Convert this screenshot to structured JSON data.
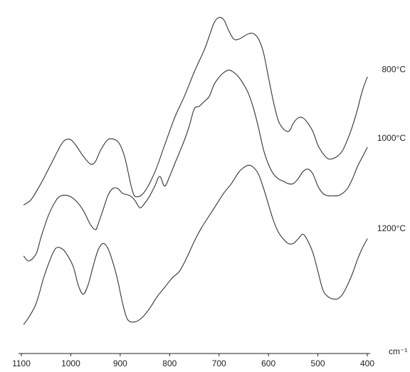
{
  "chart_data": {
    "type": "line",
    "title": "",
    "xlabel": "cm⁻¹",
    "ylabel": "",
    "xlim": [
      1100,
      400
    ],
    "x_reversed": true,
    "x_ticks": [
      "1100",
      "1000",
      "900",
      "800",
      "700",
      "600",
      "500",
      "400"
    ],
    "grid": false,
    "legend": "series labels at right end of each curve",
    "series": [
      {
        "name": "800°C",
        "points": [
          [
            1095,
            0.28
          ],
          [
            1080,
            0.3
          ],
          [
            1060,
            0.36
          ],
          [
            1040,
            0.43
          ],
          [
            1020,
            0.5
          ],
          [
            1010,
            0.52
          ],
          [
            1000,
            0.52
          ],
          [
            990,
            0.5
          ],
          [
            975,
            0.46
          ],
          [
            960,
            0.43
          ],
          [
            950,
            0.44
          ],
          [
            940,
            0.48
          ],
          [
            925,
            0.52
          ],
          [
            910,
            0.52
          ],
          [
            900,
            0.5
          ],
          [
            890,
            0.45
          ],
          [
            875,
            0.33
          ],
          [
            865,
            0.31
          ],
          [
            850,
            0.33
          ],
          [
            830,
            0.4
          ],
          [
            810,
            0.5
          ],
          [
            790,
            0.6
          ],
          [
            770,
            0.68
          ],
          [
            750,
            0.77
          ],
          [
            730,
            0.85
          ],
          [
            720,
            0.9
          ],
          [
            710,
            0.95
          ],
          [
            700,
            0.97
          ],
          [
            690,
            0.96
          ],
          [
            680,
            0.92
          ],
          [
            670,
            0.89
          ],
          [
            660,
            0.89
          ],
          [
            650,
            0.9
          ],
          [
            640,
            0.91
          ],
          [
            630,
            0.91
          ],
          [
            620,
            0.89
          ],
          [
            610,
            0.84
          ],
          [
            600,
            0.75
          ],
          [
            590,
            0.66
          ],
          [
            580,
            0.59
          ],
          [
            570,
            0.56
          ],
          [
            560,
            0.55
          ],
          [
            555,
            0.56
          ],
          [
            550,
            0.58
          ],
          [
            540,
            0.6
          ],
          [
            530,
            0.6
          ],
          [
            520,
            0.58
          ],
          [
            510,
            0.55
          ],
          [
            500,
            0.5
          ],
          [
            490,
            0.47
          ],
          [
            480,
            0.45
          ],
          [
            470,
            0.45
          ],
          [
            460,
            0.46
          ],
          [
            450,
            0.48
          ],
          [
            440,
            0.52
          ],
          [
            430,
            0.57
          ],
          [
            420,
            0.63
          ],
          [
            410,
            0.7
          ],
          [
            400,
            0.75
          ]
        ],
        "color": "#333333"
      },
      {
        "name": "1000°C",
        "points": [
          [
            1095,
            0.17
          ],
          [
            1085,
            0.15
          ],
          [
            1070,
            0.18
          ],
          [
            1060,
            0.25
          ],
          [
            1045,
            0.34
          ],
          [
            1030,
            0.4
          ],
          [
            1020,
            0.42
          ],
          [
            1005,
            0.42
          ],
          [
            990,
            0.4
          ],
          [
            975,
            0.36
          ],
          [
            960,
            0.3
          ],
          [
            950,
            0.28
          ],
          [
            945,
            0.3
          ],
          [
            935,
            0.36
          ],
          [
            925,
            0.42
          ],
          [
            915,
            0.45
          ],
          [
            905,
            0.45
          ],
          [
            895,
            0.43
          ],
          [
            880,
            0.42
          ],
          [
            870,
            0.4
          ],
          [
            860,
            0.37
          ],
          [
            850,
            0.39
          ],
          [
            840,
            0.42
          ],
          [
            830,
            0.46
          ],
          [
            820,
            0.5
          ],
          [
            810,
            0.46
          ],
          [
            800,
            0.5
          ],
          [
            790,
            0.55
          ],
          [
            780,
            0.6
          ],
          [
            770,
            0.65
          ],
          [
            760,
            0.71
          ],
          [
            750,
            0.78
          ],
          [
            740,
            0.79
          ],
          [
            730,
            0.81
          ],
          [
            720,
            0.83
          ],
          [
            710,
            0.88
          ],
          [
            700,
            0.91
          ],
          [
            690,
            0.93
          ],
          [
            680,
            0.94
          ],
          [
            670,
            0.93
          ],
          [
            660,
            0.91
          ],
          [
            650,
            0.88
          ],
          [
            640,
            0.84
          ],
          [
            630,
            0.78
          ],
          [
            620,
            0.7
          ],
          [
            610,
            0.61
          ],
          [
            600,
            0.55
          ],
          [
            590,
            0.51
          ],
          [
            580,
            0.49
          ],
          [
            570,
            0.48
          ],
          [
            560,
            0.47
          ],
          [
            550,
            0.47
          ],
          [
            540,
            0.49
          ],
          [
            530,
            0.52
          ],
          [
            520,
            0.53
          ],
          [
            510,
            0.51
          ],
          [
            500,
            0.46
          ],
          [
            490,
            0.43
          ],
          [
            480,
            0.42
          ],
          [
            470,
            0.42
          ],
          [
            460,
            0.42
          ],
          [
            450,
            0.43
          ],
          [
            440,
            0.45
          ],
          [
            430,
            0.49
          ],
          [
            420,
            0.54
          ],
          [
            410,
            0.58
          ],
          [
            400,
            0.62
          ]
        ],
        "color": "#333333"
      },
      {
        "name": "1200°C",
        "points": [
          [
            1095,
            0.05
          ],
          [
            1085,
            0.08
          ],
          [
            1070,
            0.14
          ],
          [
            1055,
            0.25
          ],
          [
            1040,
            0.34
          ],
          [
            1030,
            0.38
          ],
          [
            1020,
            0.38
          ],
          [
            1010,
            0.36
          ],
          [
            995,
            0.3
          ],
          [
            985,
            0.22
          ],
          [
            975,
            0.18
          ],
          [
            965,
            0.22
          ],
          [
            955,
            0.3
          ],
          [
            945,
            0.37
          ],
          [
            935,
            0.4
          ],
          [
            925,
            0.38
          ],
          [
            915,
            0.32
          ],
          [
            905,
            0.24
          ],
          [
            895,
            0.14
          ],
          [
            885,
            0.07
          ],
          [
            870,
            0.06
          ],
          [
            855,
            0.08
          ],
          [
            840,
            0.12
          ],
          [
            825,
            0.17
          ],
          [
            810,
            0.21
          ],
          [
            795,
            0.25
          ],
          [
            780,
            0.28
          ],
          [
            765,
            0.34
          ],
          [
            750,
            0.41
          ],
          [
            735,
            0.47
          ],
          [
            720,
            0.52
          ],
          [
            705,
            0.57
          ],
          [
            690,
            0.62
          ],
          [
            675,
            0.66
          ],
          [
            660,
            0.71
          ],
          [
            650,
            0.73
          ],
          [
            640,
            0.74
          ],
          [
            630,
            0.73
          ],
          [
            620,
            0.7
          ],
          [
            610,
            0.64
          ],
          [
            600,
            0.57
          ],
          [
            590,
            0.5
          ],
          [
            580,
            0.45
          ],
          [
            570,
            0.42
          ],
          [
            560,
            0.4
          ],
          [
            550,
            0.4
          ],
          [
            540,
            0.42
          ],
          [
            530,
            0.44
          ],
          [
            520,
            0.41
          ],
          [
            510,
            0.36
          ],
          [
            500,
            0.28
          ],
          [
            490,
            0.2
          ],
          [
            480,
            0.17
          ],
          [
            470,
            0.16
          ],
          [
            460,
            0.16
          ],
          [
            450,
            0.18
          ],
          [
            440,
            0.22
          ],
          [
            430,
            0.27
          ],
          [
            420,
            0.33
          ],
          [
            410,
            0.38
          ],
          [
            400,
            0.42
          ]
        ],
        "color": "#333333"
      }
    ]
  }
}
